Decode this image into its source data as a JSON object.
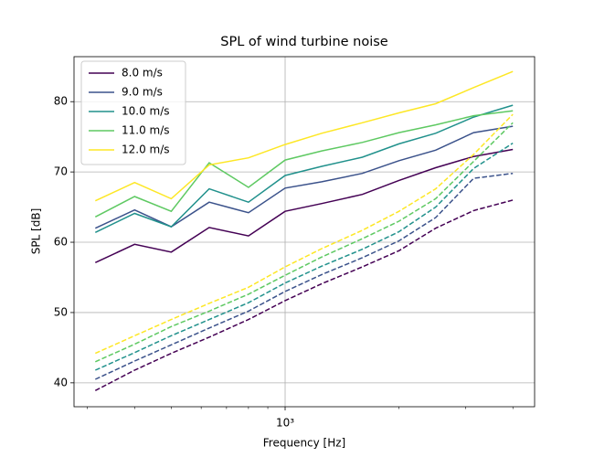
{
  "chart_data": {
    "type": "line",
    "title": "SPL of wind turbine noise",
    "xlabel": "Frequency [Hz]",
    "ylabel": "SPL [dB]",
    "x": [
      315,
      400,
      500,
      630,
      800,
      1000,
      1250,
      1600,
      2000,
      2500,
      3150,
      4000
    ],
    "xscale": "log",
    "xlim": [
      276.7,
      4565
    ],
    "ylim": [
      36.6,
      86.4
    ],
    "xticks": [
      {
        "value": 1000,
        "label": "10³"
      }
    ],
    "xminorticks": [
      300,
      400,
      500,
      600,
      700,
      800,
      900,
      2000,
      3000,
      4000
    ],
    "yticks": [
      40,
      50,
      60,
      70,
      80
    ],
    "grid": true,
    "legend": "upper left",
    "series": [
      {
        "name": "8.0 m/s",
        "color": "#440154",
        "values": [
          57.1,
          59.7,
          58.6,
          62.1,
          60.9,
          64.4,
          65.5,
          66.8,
          68.8,
          70.6,
          72.2,
          73.2
        ],
        "dashed_values": [
          38.9,
          41.8,
          44.2,
          46.5,
          49.0,
          51.7,
          54.1,
          56.5,
          58.8,
          62.0,
          64.5,
          66.0
        ]
      },
      {
        "name": "9.0 m/s",
        "color": "#3b528b",
        "values": [
          62.0,
          64.6,
          62.2,
          65.7,
          64.2,
          67.7,
          68.6,
          69.8,
          71.6,
          73.1,
          75.6,
          76.5
        ],
        "dashed_values": [
          40.5,
          43.1,
          45.4,
          47.8,
          50.2,
          53.0,
          55.4,
          57.8,
          60.2,
          63.5,
          69.1,
          69.8
        ]
      },
      {
        "name": "10.0 m/s",
        "color": "#21918c",
        "values": [
          61.4,
          64.1,
          62.2,
          67.6,
          65.7,
          69.5,
          70.8,
          72.1,
          74.0,
          75.5,
          77.8,
          79.5
        ],
        "dashed_values": [
          41.8,
          44.3,
          46.7,
          49.0,
          51.4,
          54.2,
          56.6,
          59.0,
          61.5,
          65.0,
          70.5,
          74.1
        ]
      },
      {
        "name": "11.0 m/s",
        "color": "#5ec962",
        "values": [
          63.6,
          66.5,
          64.4,
          71.3,
          67.8,
          71.7,
          73.0,
          74.2,
          75.6,
          76.7,
          78.0,
          78.7
        ],
        "dashed_values": [
          43.0,
          45.5,
          48.0,
          50.2,
          52.6,
          55.3,
          57.9,
          60.5,
          63.0,
          66.2,
          71.5,
          77.0
        ]
      },
      {
        "name": "12.0 m/s",
        "color": "#fde725",
        "values": [
          65.9,
          68.5,
          66.2,
          71.0,
          72.0,
          73.9,
          75.5,
          77.0,
          78.4,
          79.7,
          82.0,
          84.3
        ],
        "dashed_values": [
          44.2,
          46.7,
          49.0,
          51.3,
          53.6,
          56.5,
          59.1,
          61.7,
          64.4,
          67.6,
          72.5,
          78.2
        ]
      }
    ]
  }
}
